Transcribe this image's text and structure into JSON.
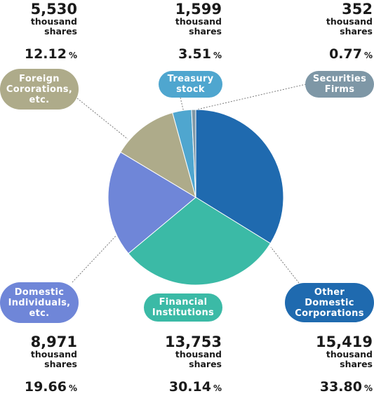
{
  "chart_data": {
    "type": "pie",
    "title": "",
    "unit_shares": "thousand shares",
    "percent_unit": "%",
    "slices": [
      {
        "key": "other_domestic",
        "label_lines": [
          "Other",
          "Domestic",
          "Corporations"
        ],
        "shares": "15,419",
        "percent": "33.80",
        "value": 33.8,
        "color": "#1f6aaf"
      },
      {
        "key": "financial",
        "label_lines": [
          "Financial",
          "Institutions"
        ],
        "shares": "13,753",
        "percent": "30.14",
        "value": 30.14,
        "color": "#3bbaa6"
      },
      {
        "key": "individuals",
        "label_lines": [
          "Domestic",
          "Individuals,",
          "etc."
        ],
        "shares": "8,971",
        "percent": "19.66",
        "value": 19.66,
        "color": "#6f86d8"
      },
      {
        "key": "foreign",
        "label_lines": [
          "Foreign",
          "Cororations,",
          "etc."
        ],
        "shares": "5,530",
        "percent": "12.12",
        "value": 12.12,
        "color": "#aeab8a"
      },
      {
        "key": "treasury",
        "label_lines": [
          "Treasury",
          "stock"
        ],
        "shares": "1,599",
        "percent": "3.51",
        "value": 3.51,
        "color": "#4fa6cf"
      },
      {
        "key": "securities",
        "label_lines": [
          "Securities",
          "Firms"
        ],
        "shares": "352",
        "percent": "0.77",
        "value": 0.77,
        "color": "#7e97a6"
      }
    ]
  }
}
